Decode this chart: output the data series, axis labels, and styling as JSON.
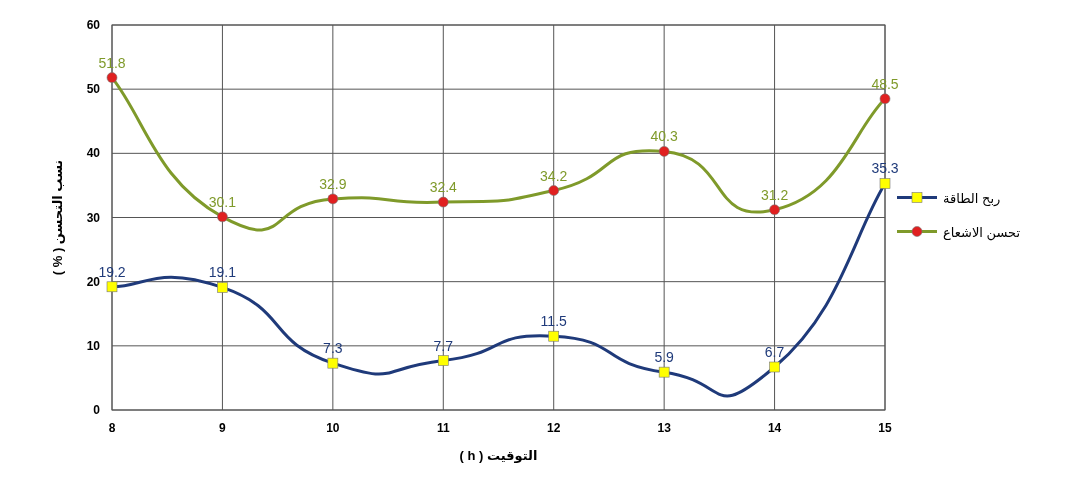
{
  "chart_data": {
    "type": "line",
    "xlabel": "التوقيت ( h )",
    "ylabel": "نسب التحسن ( % )",
    "x": [
      8,
      9,
      10,
      11,
      12,
      13,
      14,
      15
    ],
    "series": [
      {
        "name": "ربح الطاقة",
        "color": "#1f3a7a",
        "colors": [
          "#ffff00",
          "#ffff00",
          "#ffff00",
          "#ffff00",
          "#ffff00",
          "#ffff00",
          "#ffff00",
          "#ffff00"
        ],
        "marker": "square",
        "values": [
          19.2,
          19.1,
          7.3,
          7.7,
          11.5,
          5.9,
          6.7,
          35.3
        ]
      },
      {
        "name": "تحسن الاشعاع",
        "color": "#7f9a2a",
        "colors": [
          "#e02020",
          "#e02020",
          "#e02020",
          "#e02020",
          "#e02020",
          "#e02020",
          "#e02020",
          "#e02020"
        ],
        "marker": "circle",
        "values": [
          51.8,
          30.1,
          32.9,
          32.4,
          34.2,
          40.3,
          31.2,
          48.5
        ]
      }
    ],
    "xlim": [
      8,
      15
    ],
    "ylim": [
      0,
      60
    ],
    "xticks": [
      8,
      9,
      10,
      11,
      12,
      13,
      14,
      15
    ],
    "yticks": [
      0,
      10,
      20,
      30,
      40,
      50,
      60
    ],
    "grid": true,
    "legend": "right",
    "data_labels": true
  }
}
